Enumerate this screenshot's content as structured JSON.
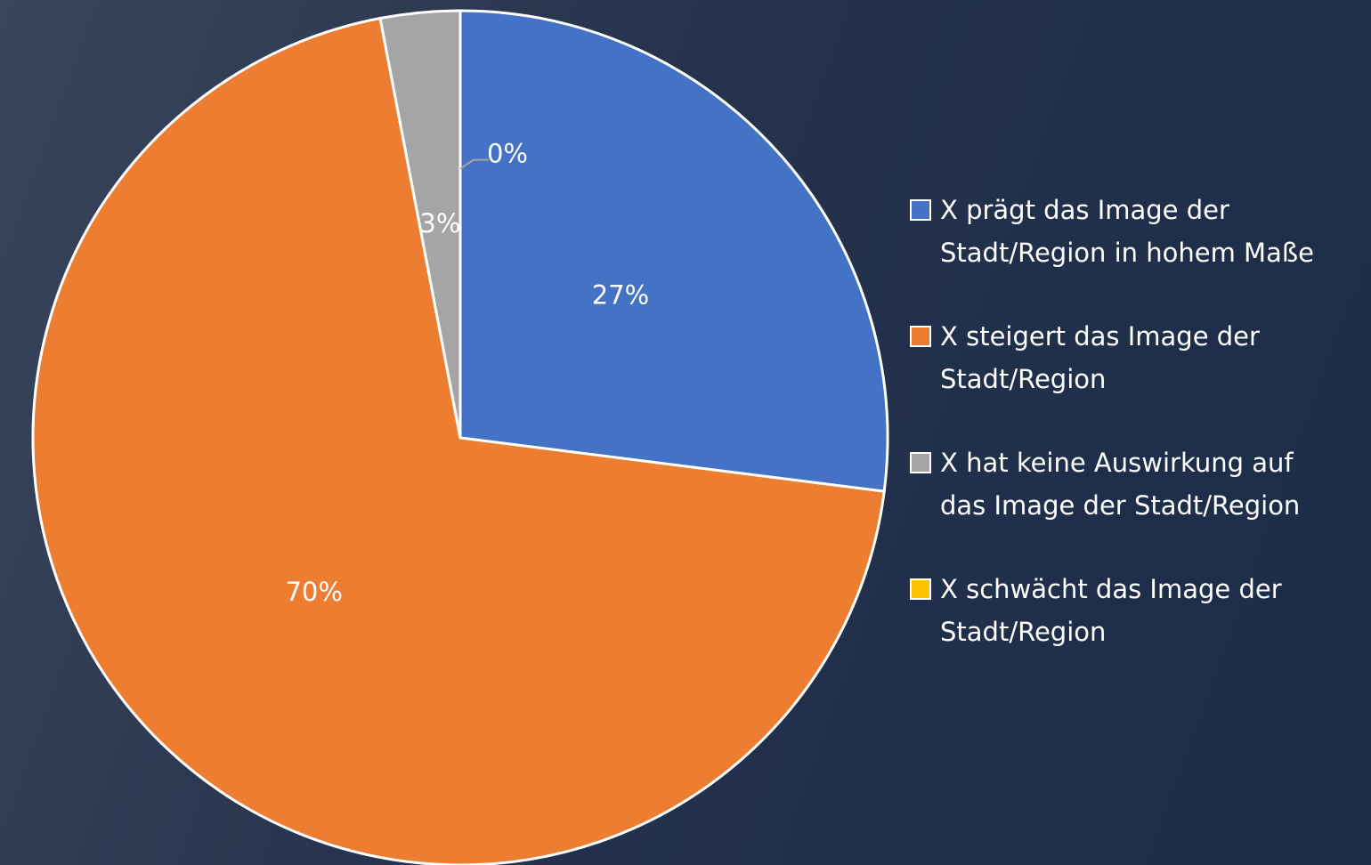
{
  "chart_data": {
    "type": "pie",
    "categories": [
      "X prägt das Image der Stadt/Region in hohem Maße",
      "X steigert das Image der Stadt/Region",
      "X hat keine Auswirkung auf das Image der Stadt/Region",
      "X schwächt das Image der Stadt/Region"
    ],
    "values": [
      27,
      70,
      3,
      0
    ],
    "value_labels": [
      "27%",
      "70%",
      "3%",
      "0%"
    ],
    "colors": [
      "#4472c4",
      "#ed7d31",
      "#a5a5a5",
      "#ffc000"
    ],
    "legend": "right"
  }
}
